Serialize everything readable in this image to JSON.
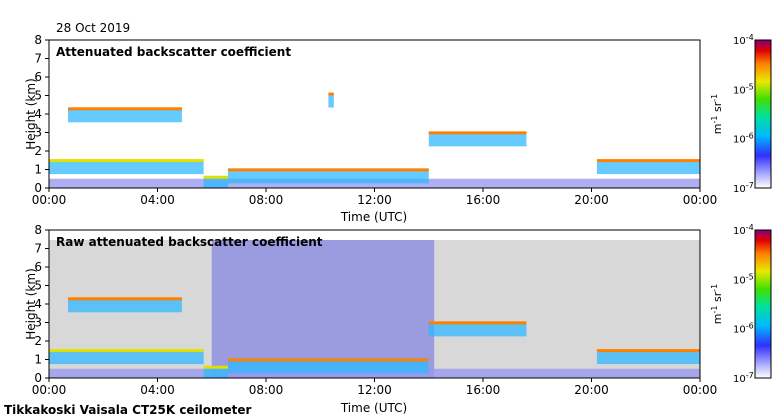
{
  "date_label": "28 Oct 2019",
  "footer": "Tikkakoski Vaisala CT25K ceilometer",
  "chart_data": [
    {
      "type": "heatmap",
      "title": "Attenuated backscatter coefficient",
      "xlabel": "Time (UTC)",
      "ylabel": "Height (km)",
      "xlim": [
        0,
        24
      ],
      "ylim": [
        0,
        8
      ],
      "x_ticks": [
        "00:00",
        "04:00",
        "08:00",
        "12:00",
        "16:00",
        "20:00",
        "00:00"
      ],
      "y_ticks": [
        "0",
        "1",
        "2",
        "3",
        "4",
        "5",
        "6",
        "7",
        "8"
      ],
      "colorbar": {
        "scale": "log",
        "range": [
          1e-07,
          0.0001
        ],
        "ticks": [
          "10-7",
          "10-6",
          "10-5",
          "10-4"
        ],
        "unit": "m-1 sr-1"
      },
      "cloud_layers": [
        {
          "from_h": 0.0,
          "to_h": 5.7,
          "base_km": 1.4,
          "level": 0.7
        },
        {
          "from_h": 0.7,
          "to_h": 4.9,
          "base_km": 4.2,
          "level": 0.85
        },
        {
          "from_h": 5.7,
          "to_h": 6.6,
          "base_km": 0.5,
          "level": 0.6
        },
        {
          "from_h": 6.6,
          "to_h": 14.0,
          "base_km": 0.9,
          "level": 0.8
        },
        {
          "from_h": 10.3,
          "to_h": 10.5,
          "base_km": 5.0,
          "level": 0.9
        },
        {
          "from_h": 14.0,
          "to_h": 17.6,
          "base_km": 2.9,
          "level": 0.85
        },
        {
          "from_h": 20.2,
          "to_h": 24.0,
          "base_km": 1.4,
          "level": 0.75
        }
      ]
    },
    {
      "type": "heatmap",
      "title": "Raw attenuated backscatter coefficient",
      "xlabel": "Time (UTC)",
      "ylabel": "Height (km)",
      "xlim": [
        0,
        24
      ],
      "ylim": [
        0,
        8
      ],
      "x_ticks": [
        "00:00",
        "04:00",
        "08:00",
        "12:00",
        "16:00",
        "20:00",
        "00:00"
      ],
      "y_ticks": [
        "0",
        "1",
        "2",
        "3",
        "4",
        "5",
        "6",
        "7",
        "8"
      ],
      "colorbar": {
        "scale": "log",
        "range": [
          1e-07,
          0.0001
        ],
        "ticks": [
          "10-7",
          "10-6",
          "10-5",
          "10-4"
        ],
        "unit": "m-1 sr-1"
      },
      "cloud_layers": [
        {
          "from_h": 0.0,
          "to_h": 5.7,
          "base_km": 1.4,
          "level": 0.7
        },
        {
          "from_h": 0.7,
          "to_h": 4.9,
          "base_km": 4.2,
          "level": 0.85
        },
        {
          "from_h": 5.7,
          "to_h": 6.6,
          "base_km": 0.5,
          "level": 0.6
        },
        {
          "from_h": 6.6,
          "to_h": 14.0,
          "base_km": 0.9,
          "level": 0.8
        },
        {
          "from_h": 14.0,
          "to_h": 17.6,
          "base_km": 2.9,
          "level": 0.85
        },
        {
          "from_h": 20.2,
          "to_h": 24.0,
          "base_km": 1.4,
          "level": 0.75
        }
      ]
    }
  ]
}
